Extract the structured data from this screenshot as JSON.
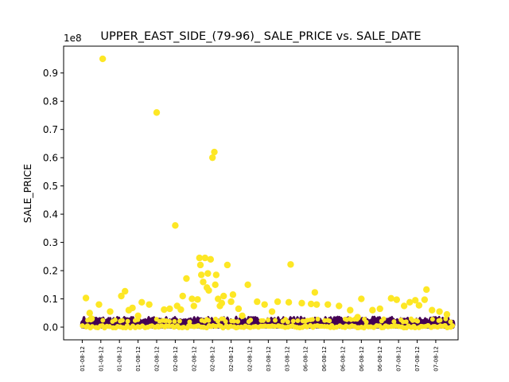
{
  "chart_data": {
    "type": "scatter",
    "title": "UPPER_EAST_SIDE_(79-96)_ SALE_PRICE vs. SALE_DATE",
    "ylabel": "SALE_PRICE",
    "xlabel": "",
    "y_offset_label": "1e8",
    "ylim": [
      -0.045,
      0.995
    ],
    "yticks": [
      0.0,
      0.1,
      0.2,
      0.3,
      0.4,
      0.5,
      0.6,
      0.7,
      0.8,
      0.9
    ],
    "ytick_labels": [
      "0.0",
      "0.1",
      "0.2",
      "0.3",
      "0.4",
      "0.5",
      "0.6",
      "0.7",
      "0.8",
      "0.9"
    ],
    "x_tick_labels": [
      "01-08-12",
      "01-08-12",
      "01-08-12",
      "01-08-12",
      "02-08-12",
      "02-08-12",
      "02-08-12",
      "02-08-12",
      "02-08-12",
      "02-08-12",
      "03-08-12",
      "03-08-12",
      "06-08-12",
      "06-08-12",
      "06-08-12",
      "06-08-12",
      "06-08-12",
      "07-08-12",
      "07-08-12",
      "07-08-12"
    ],
    "x_index_range": [
      -1,
      20.2
    ],
    "colors": {
      "high": "#fde725",
      "low": "#440154"
    },
    "grid": false,
    "legend": "none",
    "series": [
      {
        "color_group": "high",
        "points": [
          [
            0.2,
            0.103
          ],
          [
            0.4,
            0.05
          ],
          [
            0.9,
            0.08
          ],
          [
            1.1,
            0.95
          ],
          [
            1.5,
            0.055
          ],
          [
            2.1,
            0.11
          ],
          [
            2.3,
            0.127
          ],
          [
            2.5,
            0.06
          ],
          [
            2.7,
            0.068
          ],
          [
            3.2,
            0.088
          ],
          [
            3.6,
            0.08
          ],
          [
            4.0,
            0.76
          ],
          [
            4.4,
            0.062
          ],
          [
            4.7,
            0.065
          ],
          [
            5.0,
            0.36
          ],
          [
            5.1,
            0.075
          ],
          [
            5.3,
            0.062
          ],
          [
            5.4,
            0.11
          ],
          [
            5.6,
            0.172
          ],
          [
            5.9,
            0.1
          ],
          [
            6.0,
            0.075
          ],
          [
            6.2,
            0.098
          ],
          [
            6.3,
            0.245
          ],
          [
            6.35,
            0.22
          ],
          [
            6.4,
            0.185
          ],
          [
            6.5,
            0.16
          ],
          [
            6.6,
            0.245
          ],
          [
            6.7,
            0.14
          ],
          [
            6.75,
            0.19
          ],
          [
            6.8,
            0.13
          ],
          [
            6.9,
            0.24
          ],
          [
            7.0,
            0.6
          ],
          [
            7.1,
            0.62
          ],
          [
            7.15,
            0.15
          ],
          [
            7.2,
            0.185
          ],
          [
            7.3,
            0.1
          ],
          [
            7.4,
            0.075
          ],
          [
            7.5,
            0.085
          ],
          [
            7.6,
            0.11
          ],
          [
            7.8,
            0.22
          ],
          [
            8.0,
            0.09
          ],
          [
            8.1,
            0.115
          ],
          [
            8.4,
            0.065
          ],
          [
            8.9,
            0.15
          ],
          [
            9.4,
            0.09
          ],
          [
            9.8,
            0.08
          ],
          [
            10.2,
            0.055
          ],
          [
            10.5,
            0.09
          ],
          [
            11.1,
            0.088
          ],
          [
            11.2,
            0.222
          ],
          [
            11.8,
            0.085
          ],
          [
            12.3,
            0.082
          ],
          [
            12.5,
            0.123
          ],
          [
            12.6,
            0.08
          ],
          [
            13.2,
            0.08
          ],
          [
            13.8,
            0.075
          ],
          [
            14.4,
            0.06
          ],
          [
            15.0,
            0.1
          ],
          [
            15.6,
            0.06
          ],
          [
            16.0,
            0.065
          ],
          [
            16.6,
            0.102
          ],
          [
            16.9,
            0.097
          ],
          [
            17.3,
            0.075
          ],
          [
            17.6,
            0.088
          ],
          [
            17.9,
            0.095
          ],
          [
            18.1,
            0.077
          ],
          [
            18.4,
            0.097
          ],
          [
            18.5,
            0.133
          ],
          [
            18.8,
            0.06
          ],
          [
            19.2,
            0.055
          ],
          [
            19.6,
            0.045
          ],
          [
            0.5,
            0.03
          ],
          [
            3.0,
            0.04
          ],
          [
            8.6,
            0.04
          ],
          [
            14.8,
            0.035
          ]
        ]
      }
    ],
    "band": {
      "lower": 0.0,
      "upper": 0.035,
      "x_range": [
        0.0,
        20.0
      ]
    }
  }
}
